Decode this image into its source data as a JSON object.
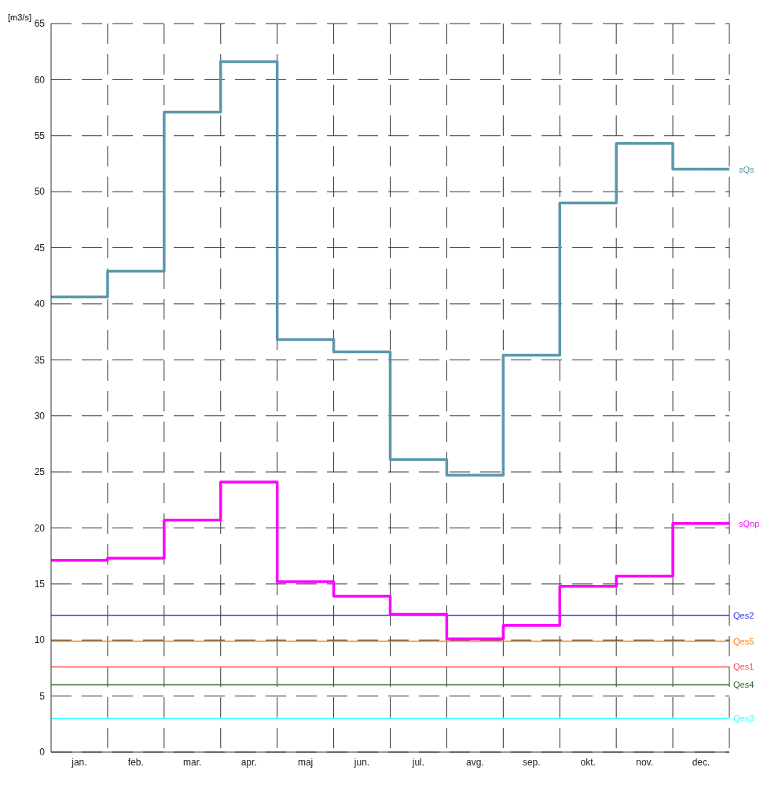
{
  "chart_data": {
    "type": "step",
    "ylabel": "[m3/s]",
    "categories": [
      "jan.",
      "feb.",
      "mar.",
      "apr.",
      "maj",
      "jun.",
      "jul.",
      "avg.",
      "sep.",
      "okt.",
      "nov.",
      "dec."
    ],
    "series": [
      {
        "name": "sQs",
        "color": "#5b97ab",
        "values": [
          40.6,
          42.9,
          57.1,
          61.6,
          36.8,
          35.7,
          26.1,
          24.7,
          35.4,
          49.0,
          54.3,
          52.0
        ]
      },
      {
        "name": "sQnp",
        "color": "#ff00ff",
        "values": [
          17.1,
          17.3,
          20.7,
          24.1,
          15.2,
          13.9,
          12.3,
          10.1,
          11.3,
          14.8,
          15.7,
          20.4
        ]
      }
    ],
    "ref_lines": [
      {
        "axis": "y",
        "value": 12.2,
        "label": "Qes2",
        "color": "#3333ff"
      },
      {
        "axis": "y",
        "value": 9.9,
        "label": "Qes5",
        "color": "#ff8000"
      },
      {
        "axis": "y",
        "value": 7.6,
        "label": "Qes1",
        "color": "#ff4d4d"
      },
      {
        "axis": "y",
        "value": 6.0,
        "label": "Qes4",
        "color": "#336633"
      },
      {
        "axis": "y",
        "value": 3.0,
        "label": "Qes3",
        "color": "#33ffff"
      }
    ],
    "ylim": [
      0,
      65
    ],
    "yticks": [
      0,
      5,
      10,
      15,
      20,
      25,
      30,
      35,
      40,
      45,
      50,
      55,
      60,
      65
    ],
    "grid": true,
    "legend": false,
    "marker": "none",
    "line_style": "solid"
  }
}
